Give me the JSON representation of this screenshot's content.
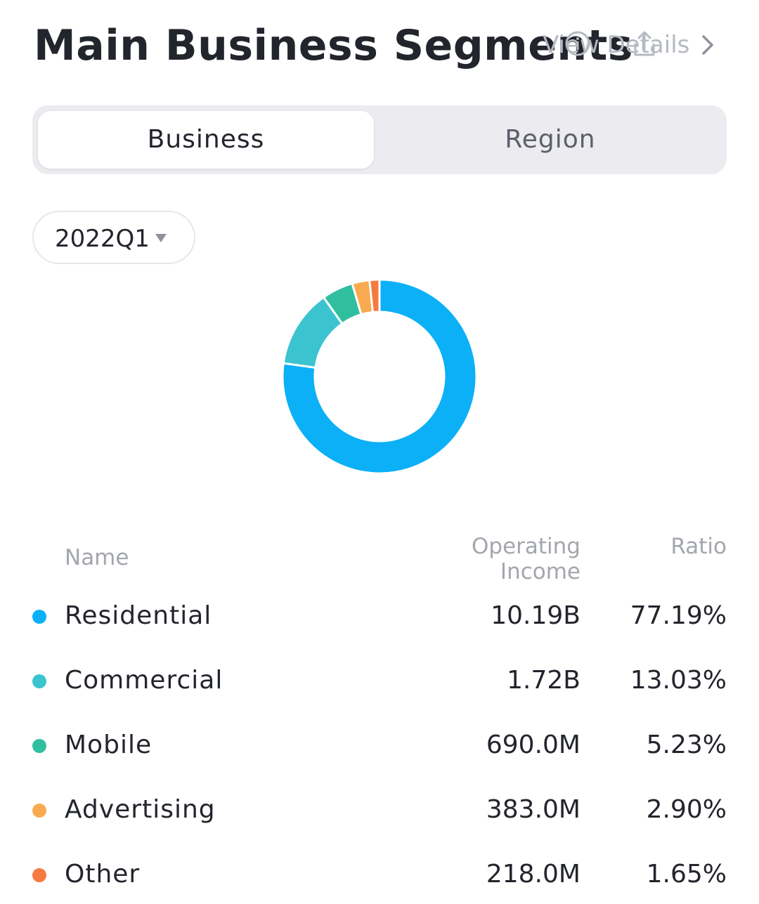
{
  "header": {
    "title": "Main Business Segments",
    "view_details_label": "View Details"
  },
  "tabs": [
    {
      "label": "Business",
      "active": true
    },
    {
      "label": "Region",
      "active": false
    }
  ],
  "period_selector": {
    "value": "2022Q1"
  },
  "table": {
    "columns": {
      "name": "Name",
      "income": "Operating Income",
      "ratio": "Ratio"
    },
    "rows": [
      {
        "name": "Residential",
        "income": "10.19B",
        "ratio": "77.19%",
        "color": "#0bb0f7"
      },
      {
        "name": "Commercial",
        "income": "1.72B",
        "ratio": "13.03%",
        "color": "#3bc3d0"
      },
      {
        "name": "Mobile",
        "income": "690.0M",
        "ratio": "5.23%",
        "color": "#2fbf9e"
      },
      {
        "name": "Advertising",
        "income": "383.0M",
        "ratio": "2.90%",
        "color": "#f9aa4f"
      },
      {
        "name": "Other",
        "income": "218.0M",
        "ratio": "1.65%",
        "color": "#f57a3f"
      }
    ]
  },
  "chart_data": {
    "type": "pie",
    "variant": "donut",
    "categories": [
      "Residential",
      "Commercial",
      "Mobile",
      "Advertising",
      "Other"
    ],
    "values": [
      77.19,
      13.03,
      5.23,
      2.9,
      1.65
    ],
    "unit": "%",
    "colors": [
      "#0bb0f7",
      "#3bc3d0",
      "#2fbf9e",
      "#f9aa4f",
      "#f57a3f"
    ]
  }
}
